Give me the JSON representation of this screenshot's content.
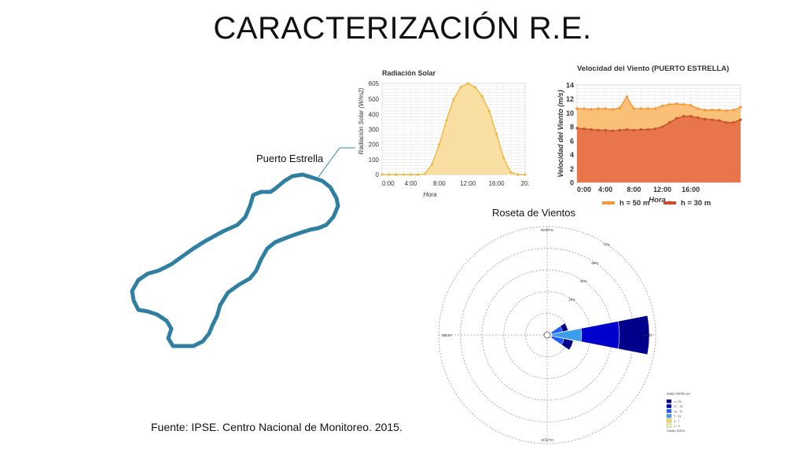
{
  "slide": {
    "title": "CARACTERIZACIÓN R.E.",
    "island_label": "Puerto Estrella",
    "rose_label": "Roseta de Vientos",
    "source": "Fuente: IPSE. Centro Nacional de Monitoreo. 2015."
  },
  "colors": {
    "island": "#2f7fa3",
    "solar_fill": "#f8dc98",
    "solar_line": "#f0b643",
    "wind50_fill": "#fac078",
    "wind50_line": "#f29a3b",
    "wind30_fill": "#e8764a",
    "wind30_line": "#c9502b"
  },
  "chart_data": [
    {
      "type": "area",
      "title": "Radiación Solar",
      "xlabel": "Hora",
      "ylabel": "Radiación Solar (W/m2)",
      "x_ticks": [
        "0:00",
        "4:00",
        "8:00",
        "12:00",
        "16:00",
        "20:"
      ],
      "ylim": [
        0,
        605
      ],
      "y_ticks": [
        0,
        100,
        200,
        300,
        400,
        500,
        605
      ],
      "x": [
        0,
        1,
        2,
        3,
        4,
        5,
        6,
        7,
        8,
        9,
        10,
        11,
        12,
        13,
        14,
        15,
        16,
        17,
        18,
        19,
        20
      ],
      "values": [
        0,
        0,
        0,
        0,
        0,
        0,
        5,
        70,
        200,
        360,
        500,
        580,
        605,
        580,
        520,
        420,
        270,
        110,
        15,
        0,
        0
      ]
    },
    {
      "type": "area",
      "title": "Velocidad del Viento (PUERTO ESTRELLA)",
      "xlabel": "Hora",
      "ylabel": "Velocidad del Viento (m/s)",
      "x_ticks": [
        "0:00",
        "4:00",
        "8:00",
        "12:00",
        "16:00",
        ""
      ],
      "ylim": [
        0,
        14
      ],
      "y_ticks": [
        0,
        2,
        4,
        6,
        8,
        10,
        12,
        14
      ],
      "legend": "bottom",
      "x": [
        0,
        1,
        2,
        3,
        4,
        5,
        6,
        7,
        8,
        9,
        10,
        11,
        12,
        13,
        14,
        15,
        16,
        17,
        18,
        19,
        20,
        21,
        22,
        23
      ],
      "series": [
        {
          "name": "h = 50 m",
          "values": [
            10.6,
            10.6,
            10.5,
            10.6,
            10.6,
            10.5,
            10.7,
            12.3,
            10.6,
            10.6,
            10.6,
            10.6,
            11.0,
            11.2,
            11.3,
            11.2,
            11.1,
            10.6,
            10.4,
            10.4,
            10.4,
            10.3,
            10.4,
            10.8
          ]
        },
        {
          "name": "h = 30 m",
          "values": [
            7.8,
            7.7,
            7.6,
            7.5,
            7.5,
            7.4,
            7.5,
            7.6,
            7.5,
            7.6,
            7.6,
            7.7,
            8.0,
            8.6,
            9.2,
            9.5,
            9.5,
            9.3,
            9.1,
            9.0,
            8.9,
            8.6,
            8.6,
            9.0
          ]
        }
      ]
    },
    {
      "type": "wind-rose",
      "title": "Roseta de Vientos",
      "directions": [
        "NORTH",
        "EAST",
        "SOUTH",
        "WEST"
      ],
      "ring_labels": [
        "28%",
        "42%",
        "56%",
        "70%"
      ],
      "legend_title": "WIND SPEED (Knots)",
      "legend_items": [
        ">= 22",
        "17 - 21",
        "11 - 17",
        "7 - 11",
        "4 - 7",
        "1 - 4"
      ],
      "calm": "Calms: 5.00%",
      "legend_colors": [
        "#00008b",
        "#0000cd",
        "#1e5cff",
        "#3a9ee8",
        "#f3e34a",
        "#f8f4b0"
      ]
    }
  ]
}
